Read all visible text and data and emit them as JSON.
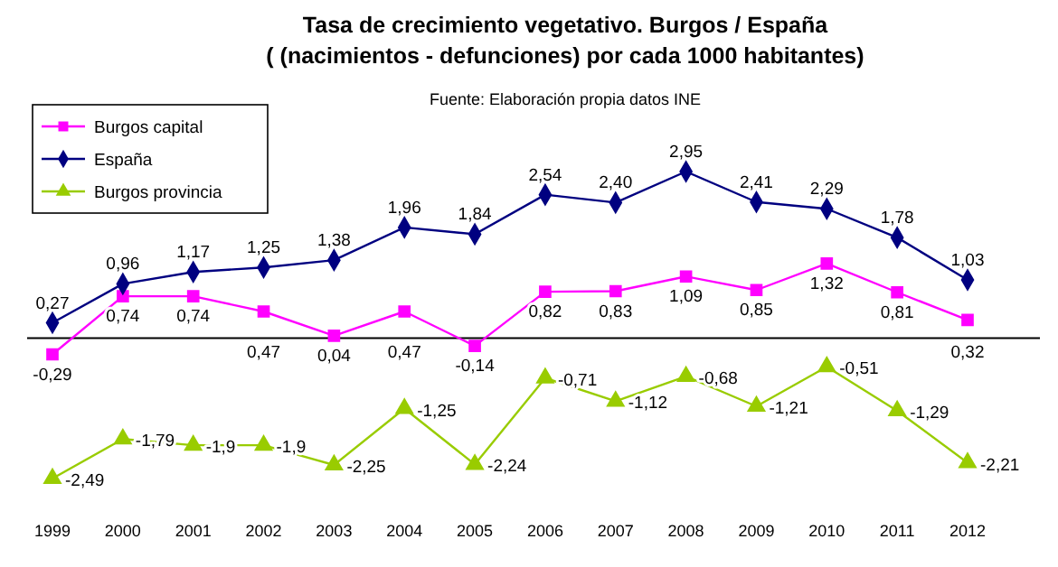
{
  "chart_data": {
    "type": "line",
    "title": "Tasa de crecimiento vegetativo. Burgos / España\n( (nacimientos - defunciones) por cada 1000 habitantes)",
    "annotations": [
      "Fuente: Elaboración propia datos INE"
    ],
    "relative": false,
    "categories": [
      "1999",
      "2000",
      "2001",
      "2002",
      "2003",
      "2004",
      "2005",
      "2006",
      "2007",
      "2008",
      "2009",
      "2010",
      "2011",
      "2012"
    ],
    "series": [
      {
        "name": "Burgos capital",
        "color": "#ff00ff",
        "marker": "square",
        "values": [
          -0.29,
          0.74,
          0.74,
          0.47,
          0.04,
          0.47,
          -0.14,
          0.82,
          0.83,
          1.09,
          0.85,
          1.32,
          0.81,
          0.32
        ],
        "value_labels": [
          "-0,29",
          "0,74",
          "0,74",
          "0,47",
          "0,04",
          "0,47",
          "-0,14",
          "0,82",
          "0,83",
          "1,09",
          "0,85",
          "1,32",
          "0,81",
          "0,32"
        ]
      },
      {
        "name": "España",
        "color": "#000080",
        "marker": "diamond",
        "values": [
          0.27,
          0.96,
          1.17,
          1.25,
          1.38,
          1.96,
          1.84,
          2.54,
          2.4,
          2.95,
          2.41,
          2.29,
          1.78,
          1.03
        ],
        "value_labels": [
          "0,27",
          "0,96",
          "1,17",
          "1,25",
          "1,38",
          "1,96",
          "1,84",
          "2,54",
          "2,40",
          "2,95",
          "2,41",
          "2,29",
          "1,78",
          "1,03"
        ]
      },
      {
        "name": "Burgos provincia",
        "color": "#99cc00",
        "marker": "triangle",
        "values": [
          -2.49,
          -1.79,
          -1.9,
          -1.9,
          -2.25,
          -1.25,
          -2.24,
          -0.71,
          -1.12,
          -0.68,
          -1.21,
          -0.51,
          -1.29,
          -2.21
        ],
        "value_labels": [
          "-2,49",
          "-1,79",
          "-1,9",
          "-1,9",
          "-2,25",
          "-1,25",
          "-2,24",
          "-0,71",
          "-1,12",
          "-0,68",
          "-1,21",
          "-0,51",
          "-1,29",
          "-2,21"
        ]
      }
    ],
    "legend": "top left"
  }
}
